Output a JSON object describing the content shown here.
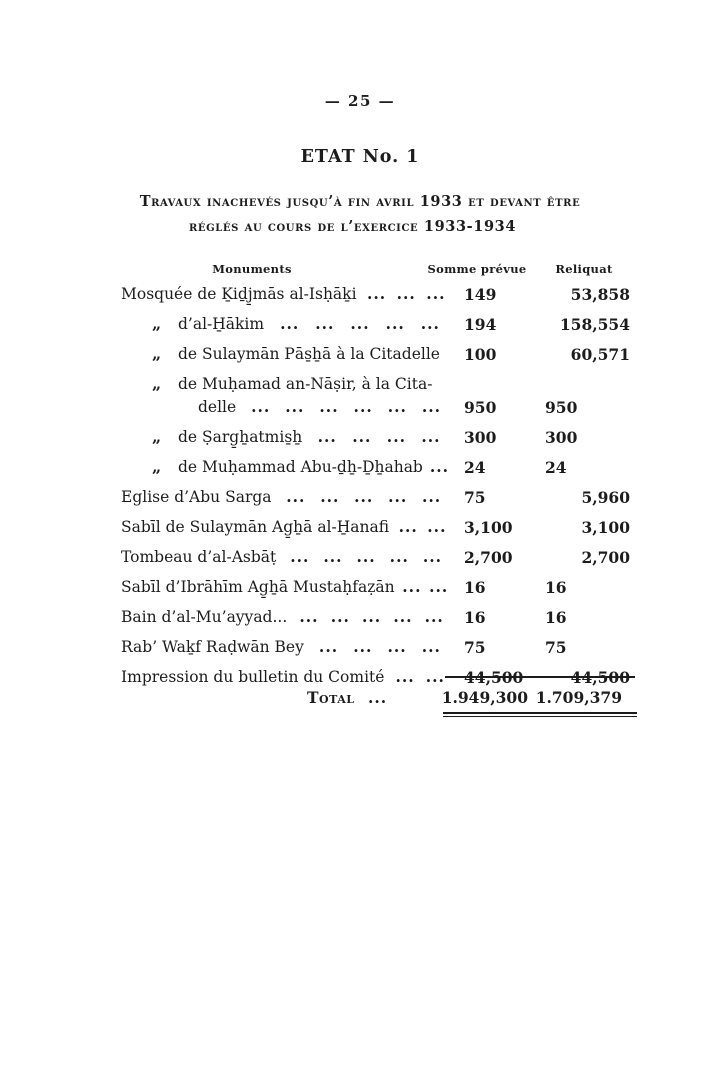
{
  "ink_color": "#1c1c1c",
  "paper_color": "#ffffff",
  "page": {
    "number": "— 25 —"
  },
  "title": "ETAT No. 1",
  "heading": {
    "line1": "Travaux inachevés jusqu’à fin avril 1933 et devant être",
    "line2": "réglés au cours de l’exercice 1933-1934"
  },
  "table": {
    "headers": {
      "monuments": "Monuments",
      "somme": "Somme prévue",
      "reliquat": "Reliquat"
    },
    "rows": [
      {
        "name": "Mosquée de Ḵiḏj̱mās al-Isḥāḵi",
        "leader": "... ... ...",
        "somme": "149",
        "reliquat": "53,858"
      },
      {
        "prefix": "„",
        "name": "d’al-H̱ākim",
        "leader": "... ... ... ... ...",
        "somme": "194",
        "reliquat": "158,554"
      },
      {
        "prefix": "„",
        "name": "de Sulaymān Pās̱ẖā à la Citadelle",
        "leader": "",
        "somme": "100",
        "reliquat": "60,571"
      },
      {
        "prefix": "„",
        "name": "de Muḥamad an-Nāṣir, à la Cita-",
        "leader": "",
        "name2": "delle",
        "leader2": "... ... ... ... ... ...",
        "somme": "950",
        "reliquat": "950"
      },
      {
        "prefix": "„",
        "name": "de Ṣarg̱ẖatmis̱ẖ",
        "leader": "... ... ... ...",
        "somme": "300",
        "reliquat": "300"
      },
      {
        "prefix": "„",
        "name": "de Muḥammad Abu-ḏẖ-Ḏẖahab",
        "leader": "...",
        "somme": "24",
        "reliquat": "24"
      },
      {
        "name": "Eglise d’Abu Sarga",
        "leader": "... ... ... ... ...",
        "somme": "75",
        "reliquat": "5,960"
      },
      {
        "name": "Sabīl de Sulaymān Ag̱ẖā al-H̱anafi",
        "leader": "... ...",
        "somme": "3,100",
        "reliquat": "3,100"
      },
      {
        "name": "Tombeau d’al-Asbāṭ",
        "leader": "... ... ... ... ...",
        "somme": "2,700",
        "reliquat": "2,700"
      },
      {
        "name": "Sabīl d’Ibrāhīm Ag̱ẖā Mustaḥfaẓān",
        "leader": "... ...",
        "somme": "16",
        "reliquat": "16"
      },
      {
        "name": "Bain d’al-Mu’ayyad...",
        "leader": "... ... ... ... ...",
        "somme": "16",
        "reliquat": "16"
      },
      {
        "name": "Rab’ Waḵf Raḍwān Bey",
        "leader": "... ... ... ...",
        "somme": "75",
        "reliquat": "75"
      },
      {
        "name": "Impression du bulletin du Comité",
        "leader": "... ...",
        "somme": "44,500",
        "reliquat": "44,500"
      }
    ],
    "total": {
      "label": "Total",
      "leader": "...",
      "somme": "1.949,300",
      "reliquat": "1.709,379"
    }
  }
}
